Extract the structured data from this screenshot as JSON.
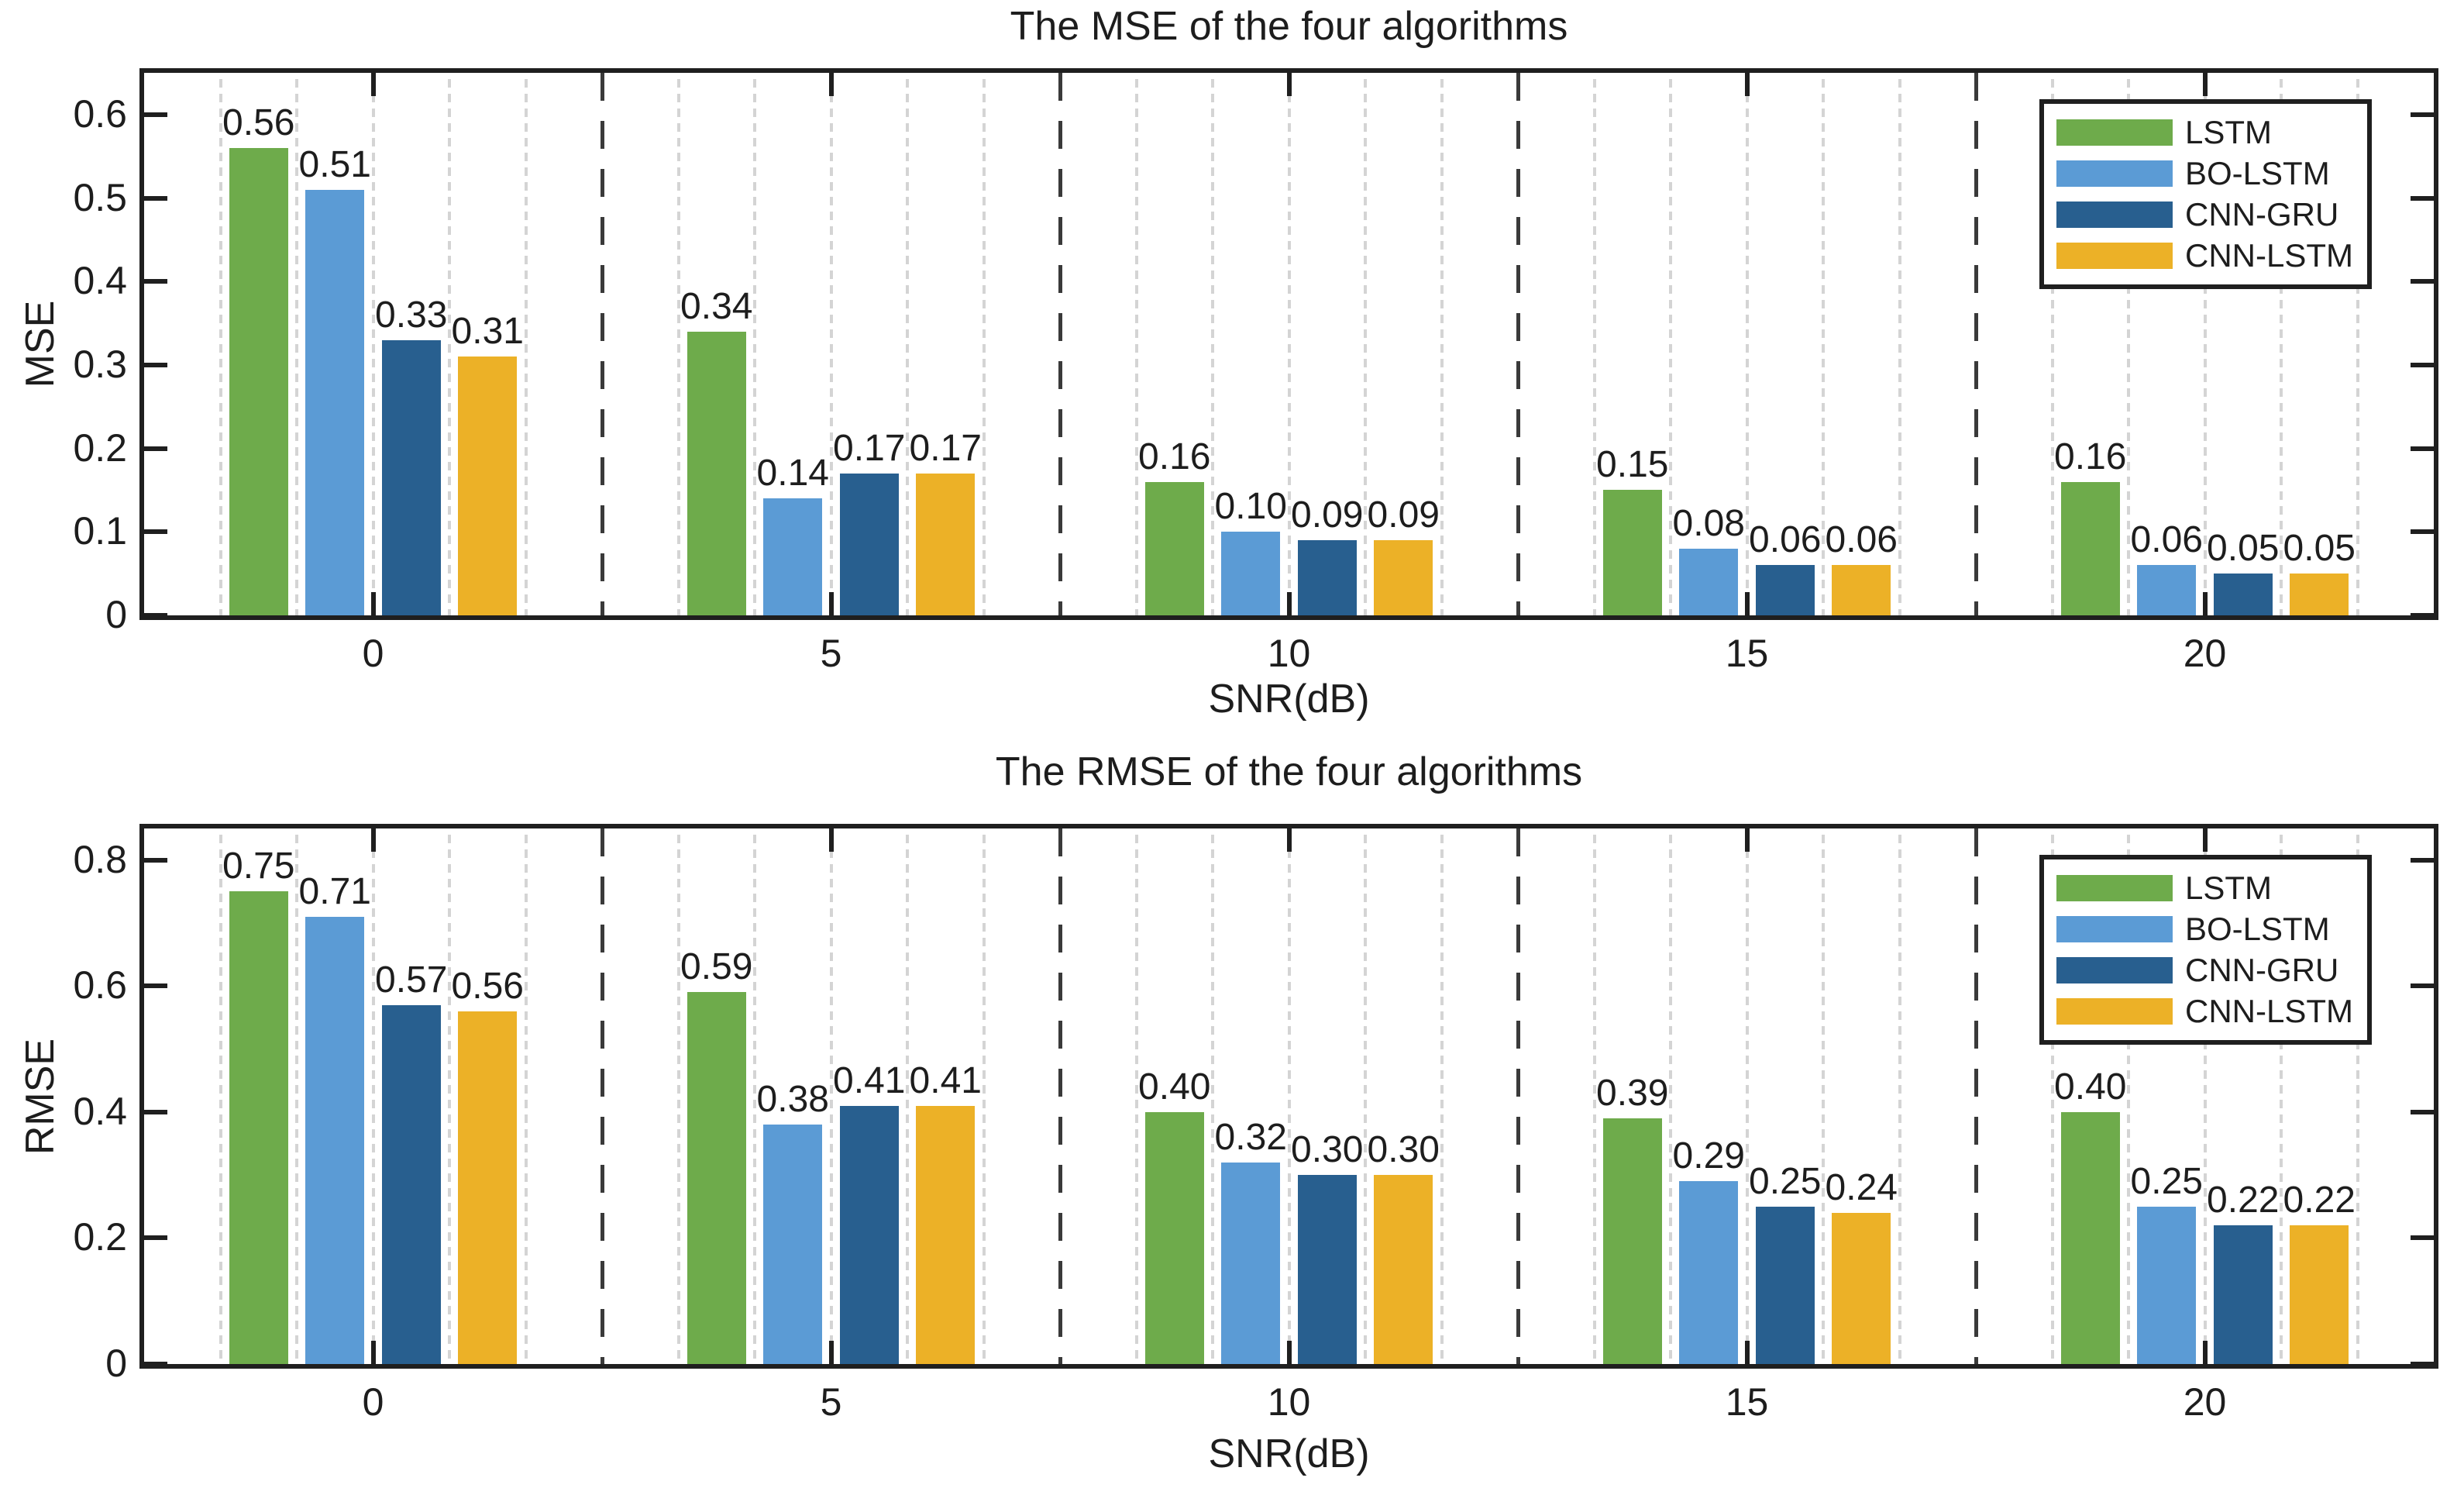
{
  "figure": {
    "background": "#ffffff",
    "axis_color": "#1f1f1f",
    "grid_color": "#d4d4d4",
    "separator_color": "#3a3a3a"
  },
  "legend_entries": [
    "LSTM",
    "BO-LSTM",
    "CNN-GRU",
    "CNN-LSTM"
  ],
  "chart_data": [
    {
      "type": "bar",
      "title": "The MSE of the four algorithms",
      "xlabel": "SNR(dB)",
      "ylabel": "MSE",
      "categories": [
        "0",
        "5",
        "10",
        "15",
        "20"
      ],
      "series": [
        {
          "name": "LSTM",
          "color": "#6EAB4B",
          "values": [
            0.56,
            0.34,
            0.16,
            0.15,
            0.16
          ]
        },
        {
          "name": "BO-LSTM",
          "color": "#5B9BD5",
          "values": [
            0.51,
            0.14,
            0.1,
            0.08,
            0.06
          ]
        },
        {
          "name": "CNN-GRU",
          "color": "#285F8F",
          "values": [
            0.33,
            0.17,
            0.09,
            0.06,
            0.05
          ]
        },
        {
          "name": "CNN-LSTM",
          "color": "#ECB127",
          "values": [
            0.31,
            0.17,
            0.09,
            0.06,
            0.05
          ]
        }
      ],
      "ylim": [
        0,
        0.65
      ],
      "yticks": [
        0,
        0.1,
        0.2,
        0.3,
        0.4,
        0.5,
        0.6
      ],
      "ytick_labels": [
        "0",
        "0.1",
        "0.2",
        "0.3",
        "0.4",
        "0.5",
        "0.6"
      ],
      "value_label_decimals": 2,
      "grid": "vertical-dotted",
      "group_separators": "dashed",
      "legend_position": "top-right"
    },
    {
      "type": "bar",
      "title": "The RMSE of the four algorithms",
      "xlabel": "SNR(dB)",
      "ylabel": "RMSE",
      "categories": [
        "0",
        "5",
        "10",
        "15",
        "20"
      ],
      "series": [
        {
          "name": "LSTM",
          "color": "#6EAB4B",
          "values": [
            0.75,
            0.59,
            0.4,
            0.39,
            0.4
          ]
        },
        {
          "name": "BO-LSTM",
          "color": "#5B9BD5",
          "values": [
            0.71,
            0.38,
            0.32,
            0.29,
            0.25
          ]
        },
        {
          "name": "CNN-GRU",
          "color": "#285F8F",
          "values": [
            0.57,
            0.41,
            0.3,
            0.25,
            0.22
          ]
        },
        {
          "name": "CNN-LSTM",
          "color": "#ECB127",
          "values": [
            0.56,
            0.41,
            0.3,
            0.24,
            0.22
          ]
        }
      ],
      "ylim": [
        0,
        0.85
      ],
      "yticks": [
        0,
        0.2,
        0.4,
        0.6,
        0.8
      ],
      "ytick_labels": [
        "0",
        "0.2",
        "0.4",
        "0.6",
        "0.8"
      ],
      "value_label_decimals": 2,
      "grid": "vertical-dotted",
      "group_separators": "dashed",
      "legend_position": "top-right"
    }
  ]
}
